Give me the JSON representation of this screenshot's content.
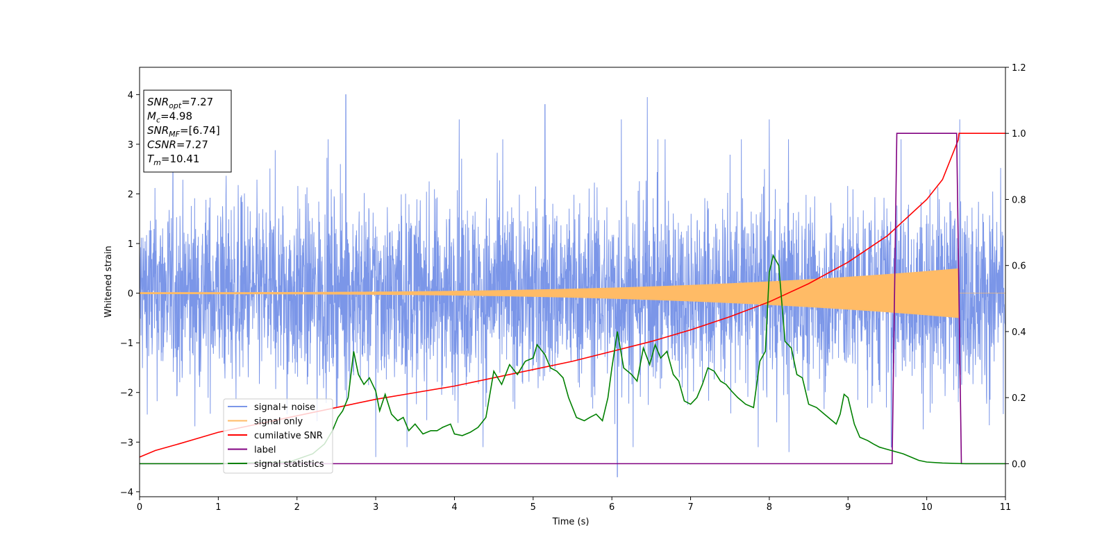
{
  "chart_data": {
    "type": "line",
    "title": "",
    "xlabel": "Time (s)",
    "ylabel": "Whitened strain",
    "y2label": "",
    "xlim": [
      0,
      11
    ],
    "ylim": [
      -4.1,
      4.55
    ],
    "y2lim": [
      -0.1,
      1.2
    ],
    "xticks": [
      "0",
      "1",
      "2",
      "3",
      "4",
      "5",
      "6",
      "7",
      "8",
      "9",
      "10",
      "11"
    ],
    "yticks": [
      "4",
      "3",
      "2",
      "1",
      "0",
      "−1",
      "−2",
      "−3",
      "−4"
    ],
    "y2ticks": [
      "1.2",
      "1.0",
      "0.8",
      "0.6",
      "0.4",
      "0.2",
      "0.0"
    ],
    "grid": false,
    "legend_position": "lower-left",
    "annotation": {
      "lines": [
        {
          "sym": "SNR",
          "sub": "opt",
          "text": "=7.27"
        },
        {
          "sym": "M",
          "sub": "c",
          "text": "=4.98"
        },
        {
          "sym": "SNR",
          "sub": "MF",
          "text": "=[6.74]"
        },
        {
          "sym": "CSNR",
          "sub": "",
          "text": "=7.27"
        },
        {
          "sym": "T",
          "sub": "m",
          "text": "=10.41"
        }
      ]
    },
    "series": [
      {
        "name": "signal+ noise",
        "axis": "left",
        "color": "#7b96e8",
        "style": "noise",
        "noise_amplitude": 1.0,
        "peaks": [
          [
            2.62,
            4.0
          ],
          [
            3.0,
            -3.3
          ],
          [
            4.06,
            3.5
          ],
          [
            5.15,
            3.8
          ],
          [
            6.07,
            -3.7
          ],
          [
            6.12,
            3.5
          ],
          [
            6.45,
            3.95
          ],
          [
            8.0,
            3.5
          ],
          [
            8.25,
            -3.2
          ],
          [
            10.42,
            3.5
          ],
          [
            9.55,
            -3.1
          ]
        ]
      },
      {
        "name": "signal only",
        "axis": "left",
        "color": "#ffbb66",
        "style": "chirp",
        "chirp_end": 10.41,
        "amplitude_start": 0.02,
        "amplitude_end": 0.5
      },
      {
        "name": "cumilative SNR",
        "axis": "right",
        "color": "#ff0000",
        "x": [
          0,
          0.2,
          0.5,
          1,
          1.5,
          2,
          2.5,
          3,
          3.5,
          4,
          4.5,
          5,
          5.5,
          6,
          6.5,
          7,
          7.5,
          8,
          8.5,
          9,
          9.5,
          10,
          10.2,
          10.4,
          10.41,
          11
        ],
        "values": [
          0.02,
          0.04,
          0.06,
          0.095,
          0.12,
          0.145,
          0.17,
          0.195,
          0.215,
          0.235,
          0.26,
          0.285,
          0.31,
          0.34,
          0.37,
          0.405,
          0.445,
          0.49,
          0.545,
          0.61,
          0.69,
          0.8,
          0.86,
          0.98,
          1.0,
          1.0
        ]
      },
      {
        "name": "label",
        "axis": "right",
        "color": "#800080",
        "x": [
          0,
          9.56,
          9.62,
          10.38,
          10.44,
          11
        ],
        "values": [
          0,
          0,
          1,
          1,
          0,
          0
        ]
      },
      {
        "name": "signal statistics",
        "axis": "right",
        "color": "#008000",
        "x": [
          0,
          1.0,
          1.9,
          2.2,
          2.35,
          2.45,
          2.52,
          2.58,
          2.65,
          2.72,
          2.78,
          2.85,
          2.92,
          3.0,
          3.05,
          3.12,
          3.2,
          3.28,
          3.35,
          3.42,
          3.5,
          3.6,
          3.7,
          3.78,
          3.85,
          3.95,
          4.0,
          4.1,
          4.2,
          4.3,
          4.4,
          4.5,
          4.6,
          4.7,
          4.8,
          4.9,
          5.0,
          5.05,
          5.15,
          5.22,
          5.3,
          5.38,
          5.45,
          5.55,
          5.65,
          5.72,
          5.8,
          5.88,
          5.95,
          6.0,
          6.07,
          6.15,
          6.25,
          6.32,
          6.4,
          6.48,
          6.55,
          6.62,
          6.7,
          6.78,
          6.85,
          6.92,
          7.0,
          7.08,
          7.15,
          7.22,
          7.3,
          7.38,
          7.45,
          7.52,
          7.6,
          7.7,
          7.8,
          7.88,
          7.95,
          8.0,
          8.05,
          8.12,
          8.2,
          8.28,
          8.35,
          8.42,
          8.5,
          8.6,
          8.7,
          8.8,
          8.85,
          8.9,
          8.95,
          9.0,
          9.08,
          9.15,
          9.25,
          9.32,
          9.4,
          9.55,
          9.7,
          9.8,
          9.9,
          10.0,
          10.2,
          10.5,
          11.0
        ],
        "values": [
          0,
          0,
          0.005,
          0.03,
          0.06,
          0.1,
          0.14,
          0.16,
          0.2,
          0.34,
          0.27,
          0.24,
          0.26,
          0.22,
          0.16,
          0.21,
          0.15,
          0.13,
          0.14,
          0.1,
          0.12,
          0.09,
          0.1,
          0.1,
          0.11,
          0.12,
          0.09,
          0.085,
          0.095,
          0.11,
          0.14,
          0.28,
          0.24,
          0.3,
          0.27,
          0.31,
          0.32,
          0.36,
          0.33,
          0.29,
          0.28,
          0.26,
          0.2,
          0.14,
          0.13,
          0.14,
          0.15,
          0.13,
          0.2,
          0.29,
          0.4,
          0.29,
          0.27,
          0.25,
          0.35,
          0.3,
          0.36,
          0.32,
          0.34,
          0.27,
          0.25,
          0.19,
          0.18,
          0.2,
          0.24,
          0.29,
          0.28,
          0.25,
          0.24,
          0.22,
          0.2,
          0.18,
          0.17,
          0.31,
          0.34,
          0.58,
          0.63,
          0.6,
          0.37,
          0.35,
          0.27,
          0.26,
          0.18,
          0.17,
          0.15,
          0.13,
          0.12,
          0.15,
          0.21,
          0.2,
          0.12,
          0.08,
          0.07,
          0.06,
          0.05,
          0.04,
          0.03,
          0.02,
          0.01,
          0.005,
          0.002,
          0.0,
          0.0
        ]
      }
    ]
  }
}
